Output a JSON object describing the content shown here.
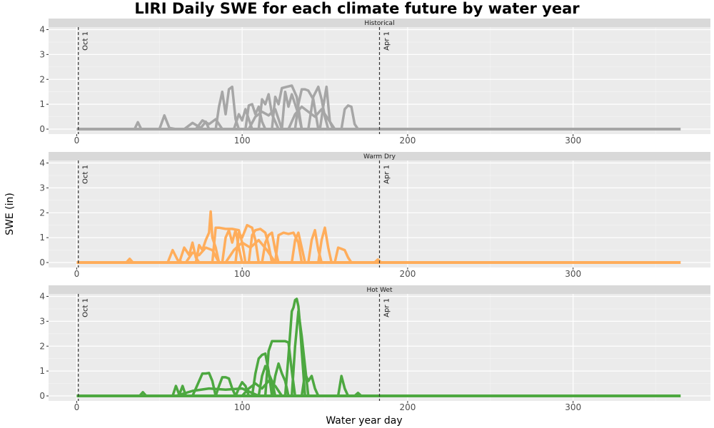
{
  "chart_data": {
    "type": "line",
    "title": "LIRI Daily SWE for each climate future by water year",
    "xlabel": "Water year day",
    "ylabel": "SWE (in)",
    "xlim": [
      -17,
      383
    ],
    "ylim": [
      -0.2,
      4.1
    ],
    "x_ticks": [
      0,
      100,
      200,
      300
    ],
    "y_ticks": [
      0,
      1,
      2,
      3,
      4
    ],
    "grid": true,
    "vlines": [
      {
        "x": 1,
        "label": "Oct 1"
      },
      {
        "x": 183,
        "label": "Apr 1"
      }
    ],
    "panels": [
      {
        "name": "Historical",
        "color": "#a6a6a6",
        "baseline": {
          "x": [
            0,
            365
          ],
          "y": [
            0,
            0
          ]
        },
        "series": [
          {
            "x": [
              35,
              37,
              39
            ],
            "y": [
              0,
              0.28,
              0
            ]
          },
          {
            "x": [
              50,
              53,
              56,
              60
            ],
            "y": [
              0,
              0.55,
              0.05,
              0
            ]
          },
          {
            "x": [
              65,
              70,
              75,
              78,
              80
            ],
            "y": [
              0,
              0.25,
              0.05,
              0.3,
              0
            ]
          },
          {
            "x": [
              84,
              86,
              88,
              90,
              92,
              94,
              96,
              98
            ],
            "y": [
              0,
              0.9,
              1.5,
              0.6,
              1.6,
              1.7,
              0.4,
              0
            ]
          },
          {
            "x": [
              95,
              98,
              100,
              102,
              104,
              106
            ],
            "y": [
              0,
              0.6,
              0.35,
              0.8,
              0.4,
              0
            ]
          },
          {
            "x": [
              102,
              104,
              106,
              108,
              110,
              112,
              114
            ],
            "y": [
              0,
              0.95,
              1.0,
              0.6,
              0.9,
              0.3,
              0
            ]
          },
          {
            "x": [
              110,
              112,
              114,
              116,
              118,
              120,
              122
            ],
            "y": [
              0,
              1.2,
              1.0,
              1.4,
              0.6,
              0.3,
              0
            ]
          },
          {
            "x": [
              118,
              120,
              122,
              124,
              127,
              130,
              133,
              136
            ],
            "y": [
              0,
              1.3,
              1.0,
              1.65,
              1.7,
              1.75,
              1.3,
              0
            ]
          },
          {
            "x": [
              124,
              126,
              128,
              130,
              132,
              134,
              136
            ],
            "y": [
              0,
              1.5,
              0.9,
              1.4,
              1.0,
              0.6,
              0
            ]
          },
          {
            "x": [
              132,
              134,
              136,
              138,
              140,
              143,
              146
            ],
            "y": [
              0,
              1.0,
              1.6,
              1.6,
              1.55,
              1.2,
              0
            ]
          },
          {
            "x": [
              140,
              143,
              146,
              148,
              150,
              152
            ],
            "y": [
              0,
              1.3,
              1.7,
              1.2,
              0.5,
              0
            ]
          },
          {
            "x": [
              147,
              149,
              151,
              153,
              155
            ],
            "y": [
              0,
              0.9,
              1.7,
              0.3,
              0
            ]
          },
          {
            "x": [
              160,
              162,
              164,
              166,
              168,
              170
            ],
            "y": [
              0,
              0.8,
              0.95,
              0.9,
              0.2,
              0
            ]
          },
          {
            "x": [
              72,
              76,
              80,
              84,
              88
            ],
            "y": [
              0,
              0.35,
              0.2,
              0.4,
              0
            ]
          },
          {
            "x": [
              104,
              108,
              112,
              116,
              120,
              124
            ],
            "y": [
              0,
              0.5,
              0.7,
              0.55,
              0.8,
              0
            ]
          },
          {
            "x": [
              128,
              132,
              136,
              140,
              144,
              148,
              152,
              156
            ],
            "y": [
              0,
              0.6,
              0.9,
              0.7,
              0.5,
              0.8,
              0.4,
              0
            ]
          }
        ]
      },
      {
        "name": "Warm Dry",
        "color": "#ffad5b",
        "baseline": {
          "x": [
            0,
            365
          ],
          "y": [
            0,
            0
          ]
        },
        "series": [
          {
            "x": [
              30,
              32,
              34
            ],
            "y": [
              0,
              0.15,
              0
            ]
          },
          {
            "x": [
              55,
              58,
              61,
              64
            ],
            "y": [
              0,
              0.5,
              0.1,
              0
            ]
          },
          {
            "x": [
              62,
              65,
              68,
              70,
              72,
              74
            ],
            "y": [
              0,
              0.6,
              0.3,
              0.8,
              0.2,
              0
            ]
          },
          {
            "x": [
              72,
              74,
              76,
              78,
              80,
              81,
              82,
              84,
              86
            ],
            "y": [
              0,
              0.7,
              0.5,
              0.9,
              1.2,
              2.05,
              1.0,
              0.6,
              0
            ]
          },
          {
            "x": [
              82,
              84,
              86,
              90,
              94,
              98,
              100,
              102
            ],
            "y": [
              0,
              1.4,
              1.4,
              1.35,
              1.35,
              1.3,
              0.8,
              0
            ]
          },
          {
            "x": [
              88,
              90,
              92,
              94,
              96,
              98,
              100
            ],
            "y": [
              0,
              1.0,
              1.3,
              0.8,
              1.3,
              0.6,
              0
            ]
          },
          {
            "x": [
              96,
              98,
              100,
              103,
              106,
              108,
              110
            ],
            "y": [
              0,
              1.2,
              1.0,
              1.5,
              1.4,
              0.9,
              0
            ]
          },
          {
            "x": [
              104,
              106,
              108,
              111,
              114,
              116,
              118
            ],
            "y": [
              0,
              1.1,
              1.3,
              1.35,
              1.2,
              0.7,
              0
            ]
          },
          {
            "x": [
              112,
              114,
              116,
              118,
              120,
              122
            ],
            "y": [
              0,
              0.8,
              1.1,
              1.2,
              0.5,
              0
            ]
          },
          {
            "x": [
              120,
              122,
              125,
              128,
              131,
              134,
              136
            ],
            "y": [
              0,
              1.1,
              1.2,
              1.15,
              1.2,
              0.8,
              0
            ]
          },
          {
            "x": [
              130,
              132,
              134,
              136,
              138
            ],
            "y": [
              0,
              0.9,
              1.2,
              0.6,
              0
            ]
          },
          {
            "x": [
              140,
              142,
              144,
              146,
              148
            ],
            "y": [
              0,
              0.9,
              1.3,
              0.5,
              0
            ]
          },
          {
            "x": [
              146,
              148,
              150,
              152,
              154
            ],
            "y": [
              0,
              0.9,
              1.4,
              0.6,
              0
            ]
          },
          {
            "x": [
              156,
              158,
              160,
              162,
              164,
              166
            ],
            "y": [
              0,
              0.6,
              0.55,
              0.5,
              0.2,
              0
            ]
          },
          {
            "x": [
              66,
              70,
              74,
              78,
              82,
              86
            ],
            "y": [
              0,
              0.4,
              0.3,
              0.6,
              0.5,
              0
            ]
          },
          {
            "x": [
              90,
              95,
              100,
              105,
              110,
              115,
              120
            ],
            "y": [
              0,
              0.5,
              0.8,
              0.6,
              0.9,
              0.5,
              0
            ]
          },
          {
            "x": [
              180,
              182,
              184
            ],
            "y": [
              0,
              0.12,
              0
            ]
          }
        ]
      },
      {
        "name": "Hot Wet",
        "color": "#4da840",
        "baseline": {
          "x": [
            0,
            365
          ],
          "y": [
            0,
            0
          ]
        },
        "series": [
          {
            "x": [
              38,
              40,
              42
            ],
            "y": [
              0,
              0.15,
              0
            ]
          },
          {
            "x": [
              58,
              60,
              62,
              64,
              66
            ],
            "y": [
              0,
              0.4,
              0.05,
              0.4,
              0
            ]
          },
          {
            "x": [
              70,
              72,
              74,
              76,
              78,
              80,
              82,
              84
            ],
            "y": [
              0,
              0.3,
              0.6,
              0.9,
              0.9,
              0.92,
              0.6,
              0
            ]
          },
          {
            "x": [
              84,
              86,
              88,
              90,
              92,
              94,
              96
            ],
            "y": [
              0,
              0.4,
              0.75,
              0.75,
              0.7,
              0.3,
              0
            ]
          },
          {
            "x": [
              96,
              98,
              100,
              102,
              104
            ],
            "y": [
              0,
              0.3,
              0.55,
              0.4,
              0
            ]
          },
          {
            "x": [
              106,
              108,
              110,
              112,
              114,
              116,
              118
            ],
            "y": [
              0,
              0.9,
              1.5,
              1.65,
              1.7,
              1.0,
              0
            ]
          },
          {
            "x": [
              110,
              112,
              114,
              116,
              118,
              120
            ],
            "y": [
              0,
              0.8,
              1.2,
              0.9,
              0.6,
              0
            ]
          },
          {
            "x": [
              114,
              116,
              118,
              122,
              126,
              128,
              130,
              132
            ],
            "y": [
              0,
              1.8,
              2.2,
              2.2,
              2.2,
              2.15,
              1.0,
              0
            ]
          },
          {
            "x": [
              126,
              128,
              130,
              131,
              132,
              133,
              134,
              135,
              136,
              138
            ],
            "y": [
              0,
              1.6,
              3.4,
              3.55,
              3.85,
              3.9,
              3.6,
              2.8,
              1.8,
              0
            ]
          },
          {
            "x": [
              130,
              132,
              134,
              136,
              138,
              140
            ],
            "y": [
              0,
              2.0,
              3.4,
              2.4,
              1.2,
              0
            ]
          },
          {
            "x": [
              118,
              120,
              122,
              124,
              126,
              128
            ],
            "y": [
              0,
              0.8,
              1.3,
              0.9,
              0.6,
              0
            ]
          },
          {
            "x": [
              136,
              138,
              140,
              142,
              144,
              146
            ],
            "y": [
              0,
              0.9,
              0.6,
              0.8,
              0.3,
              0
            ]
          },
          {
            "x": [
              158,
              160,
              162,
              164
            ],
            "y": [
              0,
              0.8,
              0.3,
              0
            ]
          },
          {
            "x": [
              60,
              70,
              80,
              90,
              100,
              110
            ],
            "y": [
              0,
              0.2,
              0.3,
              0.25,
              0.3,
              0
            ]
          },
          {
            "x": [
              100,
              104,
              108,
              112,
              116,
              120,
              124
            ],
            "y": [
              0,
              0.3,
              0.5,
              0.3,
              0.6,
              0.4,
              0
            ]
          },
          {
            "x": [
              168,
              170,
              172
            ],
            "y": [
              0,
              0.12,
              0
            ]
          }
        ]
      }
    ]
  }
}
